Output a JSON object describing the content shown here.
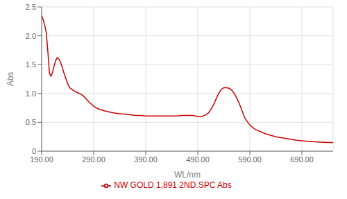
{
  "chart_data": {
    "type": "line",
    "xlabel": "WL/nm",
    "ylabel": "Abs",
    "x": [
      190,
      193,
      196,
      199,
      202,
      205,
      208,
      211,
      214,
      217,
      220,
      223,
      226,
      229,
      232,
      235,
      238,
      241,
      244,
      247,
      250,
      255,
      260,
      265,
      270,
      275,
      280,
      285,
      290,
      295,
      300,
      310,
      320,
      330,
      340,
      350,
      360,
      370,
      380,
      390,
      400,
      410,
      420,
      430,
      440,
      450,
      460,
      470,
      480,
      485,
      490,
      495,
      500,
      505,
      510,
      515,
      520,
      525,
      530,
      535,
      540,
      545,
      550,
      555,
      560,
      565,
      570,
      575,
      580,
      590,
      600,
      620,
      640,
      660,
      680,
      700,
      720,
      740,
      750
    ],
    "series": [
      {
        "name": "NW GOLD 1,891 2ND.SPC Abs",
        "color": "#cc0000",
        "values": [
          2.35,
          2.28,
          2.18,
          2.05,
          1.72,
          1.35,
          1.3,
          1.37,
          1.48,
          1.57,
          1.62,
          1.6,
          1.55,
          1.47,
          1.38,
          1.3,
          1.22,
          1.15,
          1.1,
          1.08,
          1.06,
          1.03,
          1.01,
          0.99,
          0.96,
          0.91,
          0.86,
          0.82,
          0.78,
          0.75,
          0.73,
          0.7,
          0.68,
          0.66,
          0.65,
          0.64,
          0.63,
          0.62,
          0.62,
          0.61,
          0.61,
          0.61,
          0.61,
          0.61,
          0.61,
          0.61,
          0.62,
          0.62,
          0.62,
          0.61,
          0.6,
          0.6,
          0.61,
          0.63,
          0.66,
          0.72,
          0.8,
          0.9,
          1.0,
          1.07,
          1.1,
          1.1,
          1.09,
          1.06,
          1.0,
          0.92,
          0.82,
          0.7,
          0.58,
          0.45,
          0.38,
          0.3,
          0.25,
          0.22,
          0.19,
          0.17,
          0.16,
          0.15,
          0.15
        ]
      }
    ],
    "xlim": [
      190,
      750
    ],
    "ylim": [
      0,
      2.5
    ],
    "xticks": [
      {
        "value": 190,
        "label": "190.00"
      },
      {
        "value": 290,
        "label": "290.00"
      },
      {
        "value": 390,
        "label": "390.00"
      },
      {
        "value": 490,
        "label": "490.00"
      },
      {
        "value": 590,
        "label": "590.00"
      },
      {
        "value": 690,
        "label": "690.00"
      }
    ],
    "yticks": [
      0,
      0.5,
      {
        "value": 1.0,
        "label": "1.0"
      },
      1.5,
      {
        "value": 2.0,
        "label": "2.0"
      },
      2.5
    ],
    "grid": true,
    "legend": "bottom"
  }
}
